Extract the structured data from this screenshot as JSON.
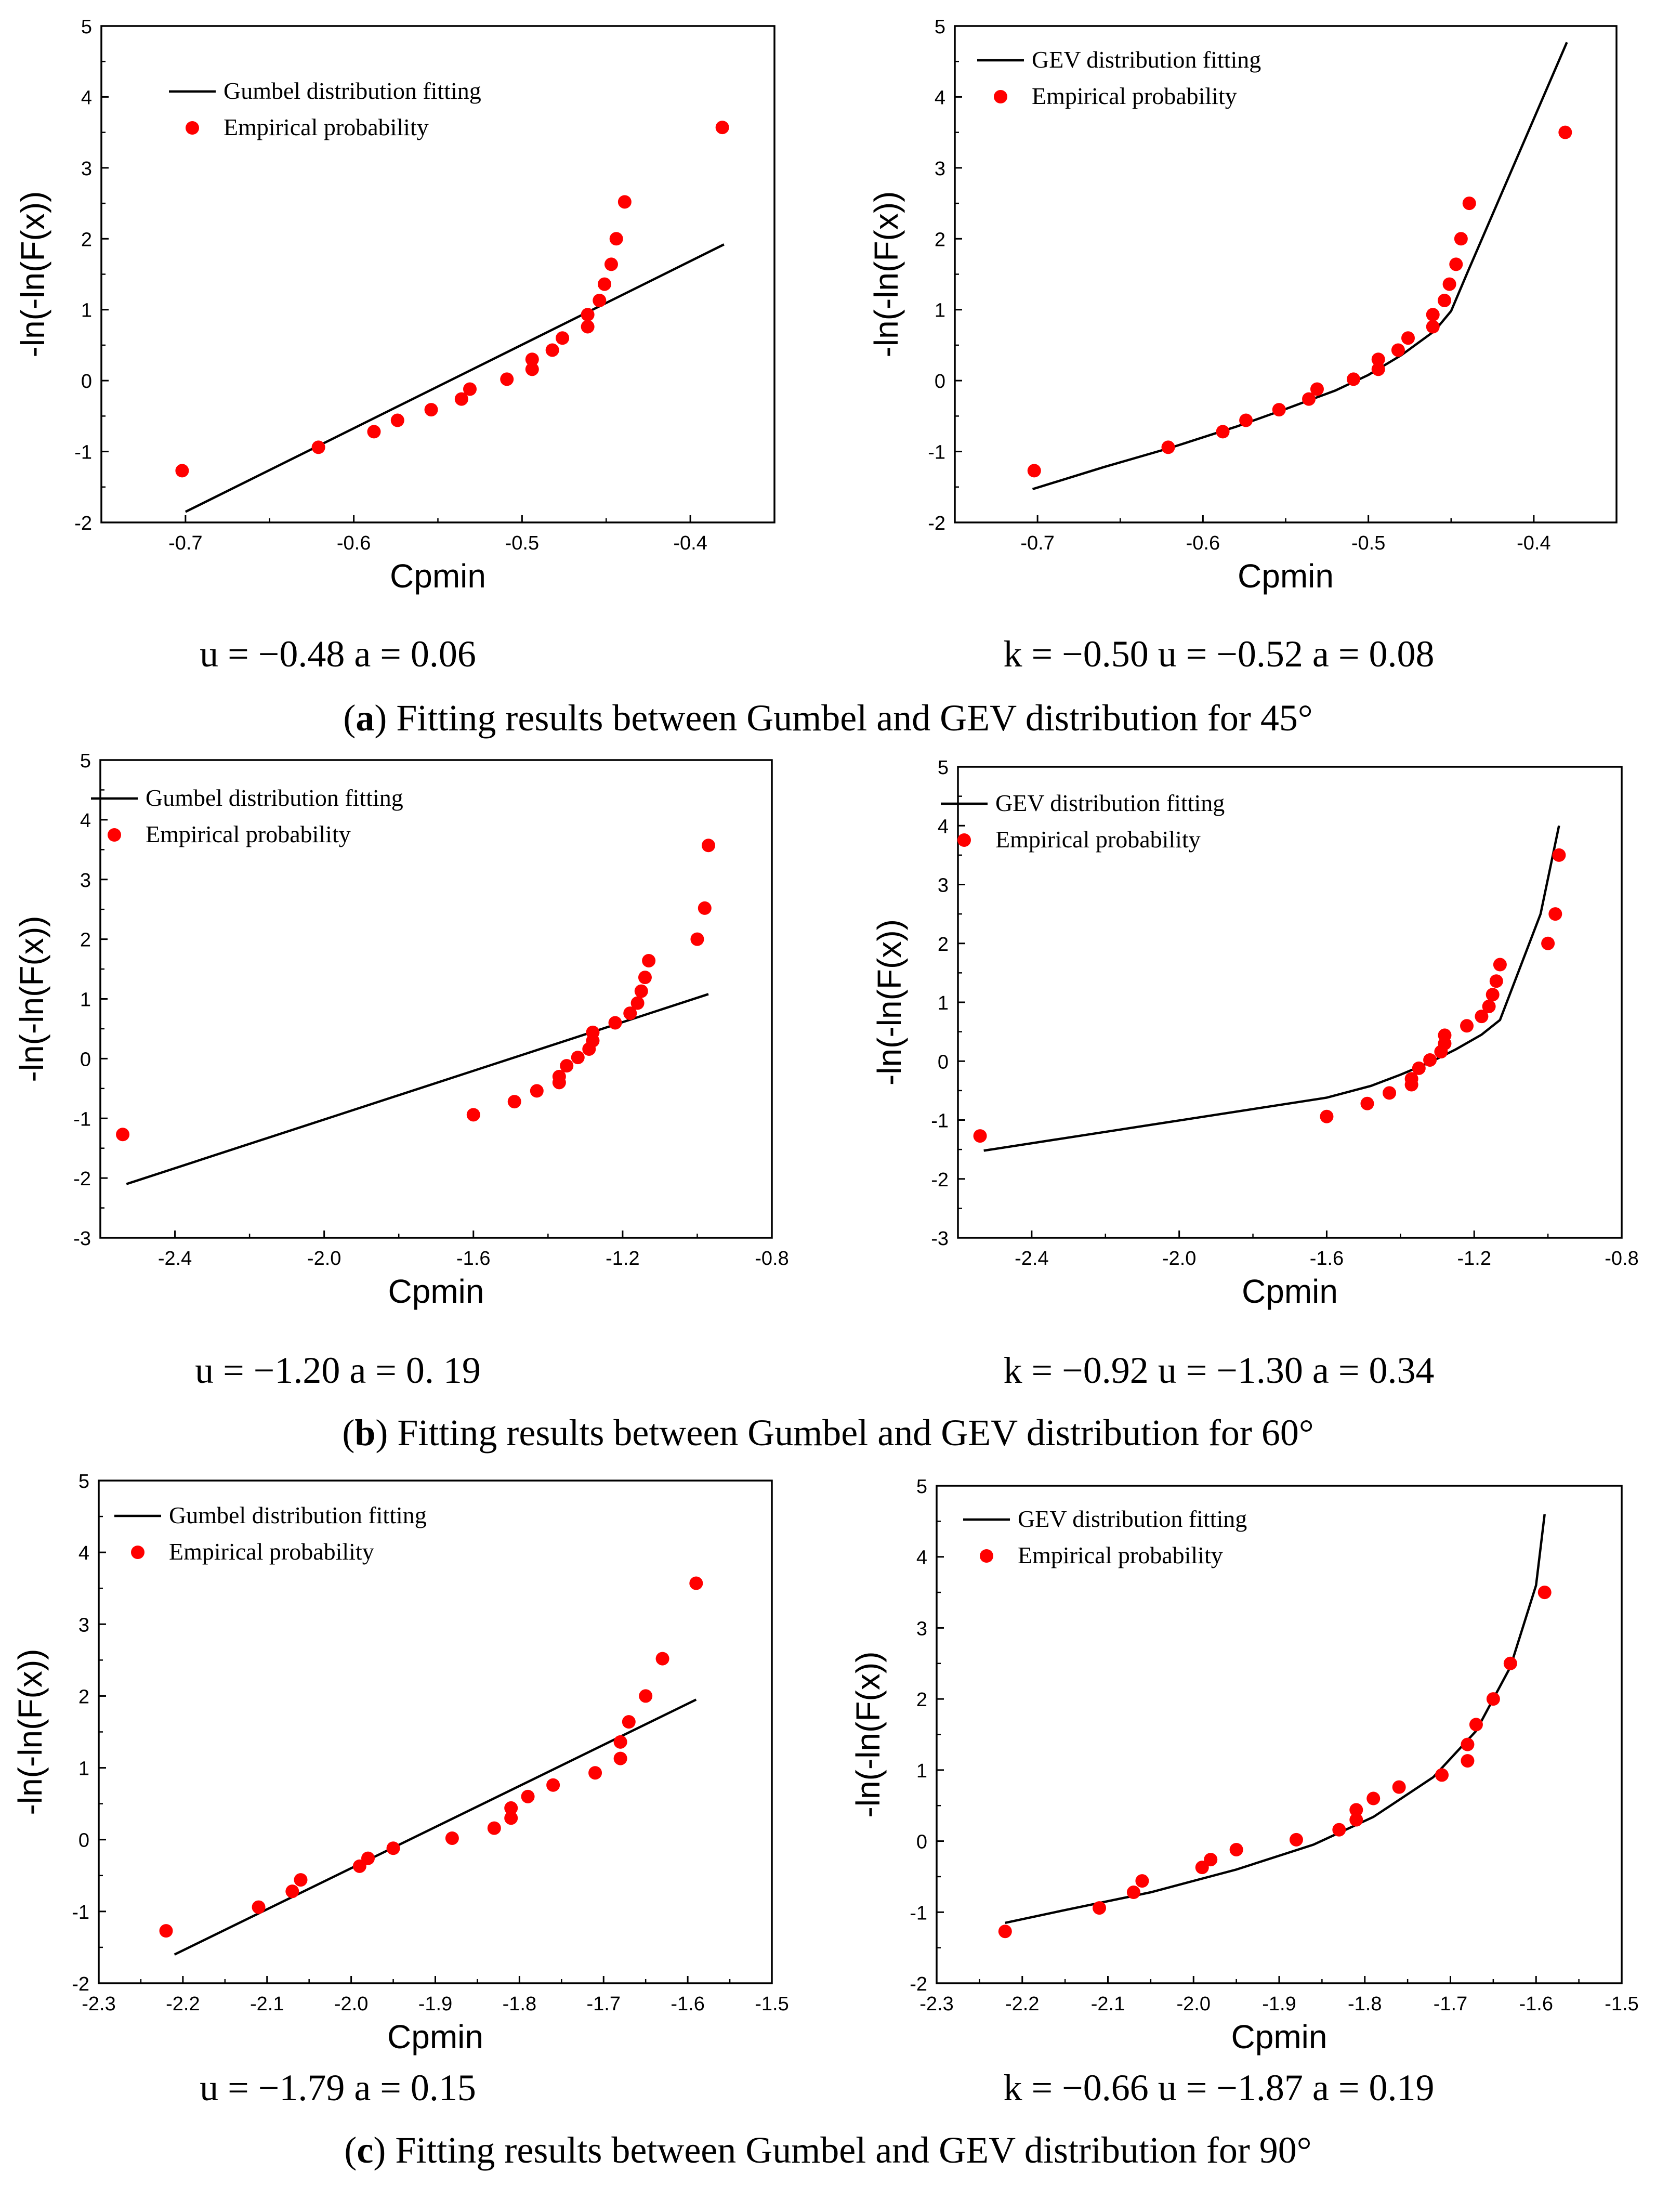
{
  "captions": [
    {
      "letter": "a",
      "text": "Fitting results between Gumbel and GEV distribution for 45°"
    },
    {
      "letter": "b",
      "text": "Fitting results between Gumbel and GEV distribution for 60°"
    },
    {
      "letter": "c",
      "text": "Fitting results between Gumbel and GEV distribution for 90°"
    }
  ],
  "params_text": {
    "a_left": "u = −0.48 a = 0.06",
    "a_right": "k = −0.50 u = −0.52 a = 0.08",
    "b_left": "u = −1.20 a = 0. 19",
    "b_right": "k = −0.92 u = −1.30 a = 0.34",
    "c_left": "u = −1.79 a = 0.15",
    "c_right": "k = −0.66 u = −1.87 a = 0.19"
  },
  "colors": {
    "fit_line": "#000000",
    "empirical": "#ff0000",
    "axis": "#000000"
  },
  "chart_data": [
    {
      "type": "scatter",
      "panel": "a-left",
      "xlabel": "Cpmin",
      "ylabel": "-ln(-ln(F(x))",
      "xlim": [
        -0.75,
        -0.35
      ],
      "ylim": [
        -2,
        5
      ],
      "xticks": [
        -0.7,
        -0.6,
        -0.5,
        -0.4
      ],
      "xtick_labels": [
        "-0.7",
        "-0.6",
        "-0.5",
        "-0.4"
      ],
      "yticks": [
        -2,
        -1,
        0,
        1,
        2,
        3,
        4,
        5
      ],
      "ytick_labels": [
        "-2",
        "-1",
        "0",
        "1",
        "2",
        "3",
        "4",
        "5"
      ],
      "legend": [
        "Gumbel distribution fitting",
        "Empirical probability"
      ],
      "fit": {
        "x": [
          -0.7,
          -0.38
        ],
        "y": [
          -1.85,
          1.92
        ]
      },
      "points": {
        "x": [
          -0.702,
          -0.621,
          -0.588,
          -0.574,
          -0.554,
          -0.536,
          -0.531,
          -0.509,
          -0.494,
          -0.494,
          -0.482,
          -0.476,
          -0.461,
          -0.461,
          -0.454,
          -0.451,
          -0.447,
          -0.444,
          -0.439,
          -0.381
        ],
        "y": [
          -1.27,
          -0.94,
          -0.72,
          -0.56,
          -0.41,
          -0.26,
          -0.12,
          0.02,
          0.16,
          0.3,
          0.43,
          0.6,
          0.76,
          0.93,
          1.13,
          1.36,
          1.64,
          2.0,
          2.52,
          3.57
        ]
      }
    },
    {
      "type": "scatter",
      "panel": "a-right",
      "xlabel": "Cpmin",
      "ylabel": "-ln(-ln(F(x))",
      "xlim": [
        -0.75,
        -0.35
      ],
      "ylim": [
        -2,
        5
      ],
      "xticks": [
        -0.7,
        -0.6,
        -0.5,
        -0.4
      ],
      "xtick_labels": [
        "-0.7",
        "-0.6",
        "-0.5",
        "-0.4"
      ],
      "yticks": [
        -2,
        -1,
        0,
        1,
        2,
        3,
        4,
        5
      ],
      "ytick_labels": [
        "-2",
        "-1",
        "0",
        "1",
        "2",
        "3",
        "4",
        "5"
      ],
      "legend": [
        "GEV distribution fitting",
        "Empirical probability"
      ],
      "fit": {
        "x": [
          -0.703,
          -0.66,
          -0.62,
          -0.58,
          -0.55,
          -0.52,
          -0.5,
          -0.48,
          -0.46,
          -0.45,
          -0.44,
          -0.38
        ],
        "y": [
          -1.53,
          -1.22,
          -0.95,
          -0.65,
          -0.4,
          -0.14,
          0.08,
          0.36,
          0.7,
          0.98,
          1.53,
          4.77
        ]
      },
      "points": {
        "x": [
          -0.702,
          -0.621,
          -0.588,
          -0.574,
          -0.554,
          -0.536,
          -0.531,
          -0.509,
          -0.494,
          -0.494,
          -0.482,
          -0.476,
          -0.461,
          -0.461,
          -0.454,
          -0.451,
          -0.447,
          -0.444,
          -0.439,
          -0.381
        ],
        "y": [
          -1.27,
          -0.94,
          -0.72,
          -0.56,
          -0.41,
          -0.26,
          -0.12,
          0.02,
          0.16,
          0.3,
          0.43,
          0.6,
          0.76,
          0.93,
          1.13,
          1.36,
          1.64,
          2.0,
          2.5,
          3.5
        ]
      }
    },
    {
      "type": "scatter",
      "panel": "b-left",
      "xlabel": "Cpmin",
      "ylabel": "-ln(-ln(F(x))",
      "xlim": [
        -2.6,
        -0.8
      ],
      "ylim": [
        -3,
        5
      ],
      "xticks": [
        -2.4,
        -2.0,
        -1.6,
        -1.2,
        -0.8
      ],
      "xtick_labels": [
        "-2.4",
        "-2.0",
        "-1.6",
        "-1.2",
        "-0.8"
      ],
      "yticks": [
        -3,
        -2,
        -1,
        0,
        1,
        2,
        3,
        4,
        5
      ],
      "ytick_labels": [
        "-3",
        "-2",
        "-1",
        "0",
        "1",
        "2",
        "3",
        "4",
        "5"
      ],
      "legend": [
        "Gumbel distribution fitting",
        "Empirical probability"
      ],
      "fit": {
        "x": [
          -2.53,
          -0.97
        ],
        "y": [
          -2.1,
          1.08
        ]
      },
      "points": {
        "x": [
          -2.54,
          -1.6,
          -1.49,
          -1.43,
          -1.37,
          -1.37,
          -1.35,
          -1.32,
          -1.29,
          -1.28,
          -1.28,
          -1.22,
          -1.18,
          -1.16,
          -1.15,
          -1.14,
          -1.13,
          -1.0,
          -0.98,
          -0.97
        ],
        "y": [
          -1.27,
          -0.94,
          -0.72,
          -0.54,
          -0.4,
          -0.3,
          -0.12,
          0.02,
          0.16,
          0.3,
          0.44,
          0.6,
          0.76,
          0.93,
          1.13,
          1.36,
          1.64,
          2.0,
          2.52,
          3.57
        ]
      }
    },
    {
      "type": "scatter",
      "panel": "b-right",
      "xlabel": "Cpmin",
      "ylabel": "-ln(-ln(F(x))",
      "xlim": [
        -2.6,
        -0.8
      ],
      "ylim": [
        -3,
        5
      ],
      "xticks": [
        -2.4,
        -2.0,
        -1.6,
        -1.2,
        -0.8
      ],
      "xtick_labels": [
        "-2.4",
        "-2.0",
        "-1.6",
        "-1.2",
        "-0.8"
      ],
      "yticks": [
        -3,
        -2,
        -1,
        0,
        1,
        2,
        3,
        4,
        5
      ],
      "ytick_labels": [
        "-3",
        "-2",
        "-1",
        "0",
        "1",
        "2",
        "3",
        "4",
        "5"
      ],
      "legend": [
        "GEV distribution fitting",
        "Empirical probability"
      ],
      "fit": {
        "x": [
          -2.53,
          -1.6,
          -1.48,
          -1.4,
          -1.32,
          -1.25,
          -1.18,
          -1.13,
          -1.02,
          -0.97
        ],
        "y": [
          -1.52,
          -0.62,
          -0.42,
          -0.23,
          -0.02,
          0.2,
          0.45,
          0.7,
          2.5,
          4.0
        ]
      },
      "points": {
        "x": [
          -2.54,
          -1.6,
          -1.49,
          -1.43,
          -1.37,
          -1.37,
          -1.35,
          -1.32,
          -1.29,
          -1.28,
          -1.28,
          -1.22,
          -1.18,
          -1.16,
          -1.15,
          -1.14,
          -1.13,
          -1.0,
          -0.98,
          -0.97
        ],
        "y": [
          -1.27,
          -0.94,
          -0.72,
          -0.54,
          -0.4,
          -0.3,
          -0.12,
          0.02,
          0.16,
          0.3,
          0.44,
          0.6,
          0.76,
          0.93,
          1.13,
          1.36,
          1.64,
          2.0,
          2.5,
          3.5
        ]
      }
    },
    {
      "type": "scatter",
      "panel": "c-left",
      "xlabel": "Cpmin",
      "ylabel": "-ln(-ln(F(x))",
      "xlim": [
        -2.3,
        -1.5
      ],
      "ylim": [
        -2,
        5
      ],
      "xticks": [
        -2.3,
        -2.2,
        -2.1,
        -2.0,
        -1.9,
        -1.8,
        -1.7,
        -1.6,
        -1.5
      ],
      "xtick_labels": [
        "-2.3",
        "-2.2",
        "-2.1",
        "-2.0",
        "-1.9",
        "-1.8",
        "-1.7",
        "-1.6",
        "-1.5"
      ],
      "yticks": [
        -2,
        -1,
        0,
        1,
        2,
        3,
        4,
        5
      ],
      "ytick_labels": [
        "-2",
        "-1",
        "0",
        "1",
        "2",
        "3",
        "4",
        "5"
      ],
      "legend": [
        "Gumbel distribution fitting",
        "Empirical probability"
      ],
      "fit": {
        "x": [
          -2.21,
          -1.59
        ],
        "y": [
          -1.6,
          1.95
        ]
      },
      "points": {
        "x": [
          -2.22,
          -2.11,
          -2.07,
          -2.06,
          -1.99,
          -1.98,
          -1.95,
          -1.88,
          -1.83,
          -1.81,
          -1.81,
          -1.79,
          -1.76,
          -1.71,
          -1.68,
          -1.68,
          -1.67,
          -1.65,
          -1.63,
          -1.59
        ],
        "y": [
          -1.27,
          -0.94,
          -0.72,
          -0.56,
          -0.37,
          -0.26,
          -0.12,
          0.02,
          0.16,
          0.3,
          0.44,
          0.6,
          0.76,
          0.93,
          1.13,
          1.36,
          1.64,
          2.0,
          2.52,
          3.57
        ]
      }
    },
    {
      "type": "scatter",
      "panel": "c-right",
      "xlabel": "Cpmin",
      "ylabel": "-ln(-ln(F(x))",
      "xlim": [
        -2.3,
        -1.5
      ],
      "ylim": [
        -2,
        5
      ],
      "xticks": [
        -2.3,
        -2.2,
        -2.1,
        -2.0,
        -1.9,
        -1.8,
        -1.7,
        -1.6,
        -1.5
      ],
      "xtick_labels": [
        "-2.3",
        "-2.2",
        "-2.1",
        "-2.0",
        "-1.9",
        "-1.8",
        "-1.7",
        "-1.6",
        "-1.5"
      ],
      "yticks": [
        -2,
        -1,
        0,
        1,
        2,
        3,
        4,
        5
      ],
      "ytick_labels": [
        "-2",
        "-1",
        "0",
        "1",
        "2",
        "3",
        "4",
        "5"
      ],
      "legend": [
        "GEV distribution fitting",
        "Empirical probability"
      ],
      "fit": {
        "x": [
          -2.22,
          -2.15,
          -2.05,
          -1.95,
          -1.86,
          -1.79,
          -1.72,
          -1.67,
          -1.63,
          -1.6,
          -1.59
        ],
        "y": [
          -1.15,
          -0.97,
          -0.72,
          -0.4,
          -0.05,
          0.34,
          0.9,
          1.55,
          2.45,
          3.6,
          4.6
        ]
      },
      "points": {
        "x": [
          -2.22,
          -2.11,
          -2.07,
          -2.06,
          -1.99,
          -1.98,
          -1.95,
          -1.88,
          -1.83,
          -1.81,
          -1.81,
          -1.79,
          -1.76,
          -1.71,
          -1.68,
          -1.68,
          -1.67,
          -1.65,
          -1.63,
          -1.59
        ],
        "y": [
          -1.27,
          -0.94,
          -0.72,
          -0.56,
          -0.37,
          -0.26,
          -0.12,
          0.02,
          0.16,
          0.3,
          0.44,
          0.6,
          0.76,
          0.93,
          1.13,
          1.36,
          1.64,
          2.0,
          2.5,
          3.5
        ]
      }
    }
  ]
}
